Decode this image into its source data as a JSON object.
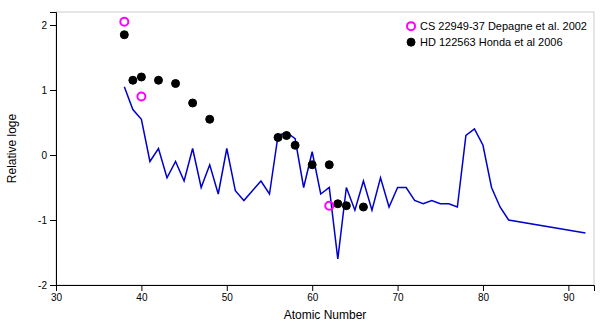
{
  "chart_data": {
    "type": "scatter",
    "xlabel": "Atomic Number",
    "ylabel": "Relative loge",
    "xlim": [
      30,
      93
    ],
    "ylim": [
      -2,
      2.2
    ],
    "xticks": [
      30,
      40,
      50,
      60,
      70,
      80,
      90
    ],
    "yticks": [
      -2,
      -1,
      0,
      1,
      2
    ],
    "grid": false,
    "legend": "upper right",
    "series": [
      {
        "type": "line",
        "color": "#0000cc",
        "x": [
          38,
          39,
          40,
          41,
          42,
          43,
          44,
          45,
          46,
          47,
          48,
          49,
          50,
          51,
          52,
          53,
          54,
          55,
          56,
          57,
          58,
          59,
          60,
          61,
          62,
          63,
          64,
          65,
          66,
          67,
          68,
          69,
          70,
          71,
          72,
          73,
          74,
          75,
          76,
          77,
          78,
          79,
          80,
          81,
          82,
          83,
          92
        ],
        "values": [
          1.05,
          0.7,
          0.55,
          -0.1,
          0.1,
          -0.35,
          -0.1,
          -0.4,
          0.1,
          -0.5,
          -0.15,
          -0.6,
          0.1,
          -0.55,
          -0.7,
          -0.55,
          -0.4,
          -0.6,
          0.3,
          0.35,
          0.25,
          -0.5,
          0.05,
          -0.6,
          -0.5,
          -1.6,
          -0.5,
          -0.85,
          -0.4,
          -0.85,
          -0.35,
          -0.8,
          -0.5,
          -0.5,
          -0.7,
          -0.75,
          -0.7,
          -0.75,
          -0.75,
          -0.8,
          0.3,
          0.4,
          0.15,
          -0.5,
          -0.8,
          -1.0,
          -1.2
        ]
      },
      {
        "name": "HD 122563 Honda et al 2006",
        "type": "scatter",
        "marker": "circle",
        "color": "#000000",
        "x": [
          38,
          39,
          40,
          42,
          44,
          46,
          48,
          56,
          57,
          58,
          60,
          62,
          63,
          64,
          66
        ],
        "values": [
          1.85,
          1.15,
          1.2,
          1.15,
          1.1,
          0.8,
          0.55,
          0.27,
          0.3,
          0.15,
          -0.15,
          -0.15,
          -0.75,
          -0.78,
          -0.8
        ]
      },
      {
        "name": "CS 22949-37 Depagne et al. 2002",
        "type": "scatter",
        "marker": "circle-open",
        "color": "#ff00ff",
        "x": [
          38,
          40,
          62
        ],
        "values": [
          2.05,
          0.9,
          -0.78
        ]
      }
    ]
  }
}
